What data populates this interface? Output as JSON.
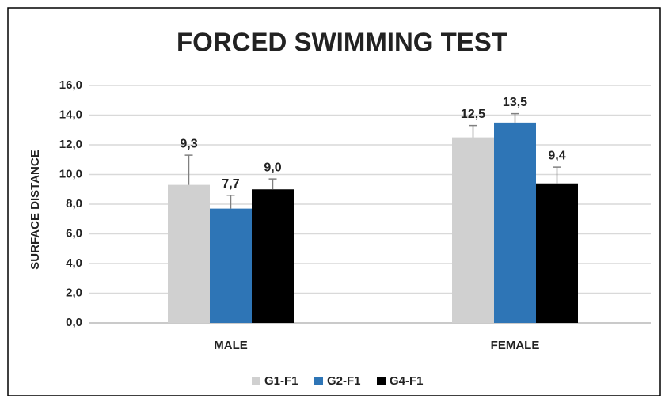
{
  "chart_data": {
    "type": "bar",
    "title": "FORCED SWIMMING TEST",
    "y_label": "SURFACE DISTANCE",
    "categories": [
      "MALE",
      "FEMALE"
    ],
    "series": [
      {
        "name": "G1-F1",
        "color": "#d0d0d0",
        "values": [
          9.3,
          12.5
        ],
        "errors": [
          2.0,
          0.8
        ],
        "value_labels": [
          "9,3",
          "12,5"
        ]
      },
      {
        "name": "G2-F1",
        "color": "#2e75b6",
        "values": [
          7.7,
          13.5
        ],
        "errors": [
          0.9,
          0.6
        ],
        "value_labels": [
          "7,7",
          "13,5"
        ]
      },
      {
        "name": "G4-F1",
        "color": "#000000",
        "values": [
          9.0,
          9.4
        ],
        "errors": [
          0.7,
          1.1
        ],
        "value_labels": [
          "9,0",
          "9,4"
        ]
      }
    ],
    "ylim": [
      0,
      16
    ],
    "yticks": [
      {
        "value": 0,
        "label": "0,0"
      },
      {
        "value": 2,
        "label": "2,0"
      },
      {
        "value": 4,
        "label": "4,0"
      },
      {
        "value": 6,
        "label": "6,0"
      },
      {
        "value": 8,
        "label": "8,0"
      },
      {
        "value": 10,
        "label": "10,0"
      },
      {
        "value": 12,
        "label": "12,0"
      },
      {
        "value": 14,
        "label": "14,0"
      },
      {
        "value": 16,
        "label": "16,0"
      }
    ],
    "grid": true,
    "legend": "bottom"
  }
}
